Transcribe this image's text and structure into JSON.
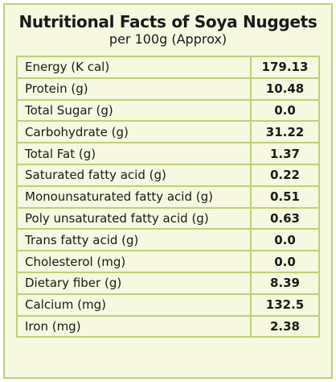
{
  "title": "Nutritional Facts of Soya Nuggets",
  "subtitle": "per 100g (Approx)",
  "rows": [
    {
      "nutrient": "Energy (K cal)",
      "amount": "179.13"
    },
    {
      "nutrient": "Protein (g)",
      "amount": "10.48"
    },
    {
      "nutrient": "Total Sugar (g)",
      "amount": "0.0"
    },
    {
      "nutrient": "Carbohydrate (g)",
      "amount": "31.22"
    },
    {
      "nutrient": "Total Fat (g)",
      "amount": "1.37"
    },
    {
      "nutrient": "Saturated fatty acid (g)",
      "amount": "0.22"
    },
    {
      "nutrient": "Monounsaturated fatty acid (g)",
      "amount": "0.51"
    },
    {
      "nutrient": "Poly unsaturated fatty acid (g)",
      "amount": "0.63"
    },
    {
      "nutrient": "Trans fatty acid (g)",
      "amount": "0.0"
    },
    {
      "nutrient": "Cholesterol (mg)",
      "amount": "0.0"
    },
    {
      "nutrient": "Dietary fiber (g)",
      "amount": "8.39"
    },
    {
      "nutrient": "Calcium (mg)",
      "amount": "132.5"
    },
    {
      "nutrient": "Iron (mg)",
      "amount": "2.38"
    }
  ],
  "colors": {
    "background": "#f6f8df",
    "border": "#bfcf7a"
  }
}
